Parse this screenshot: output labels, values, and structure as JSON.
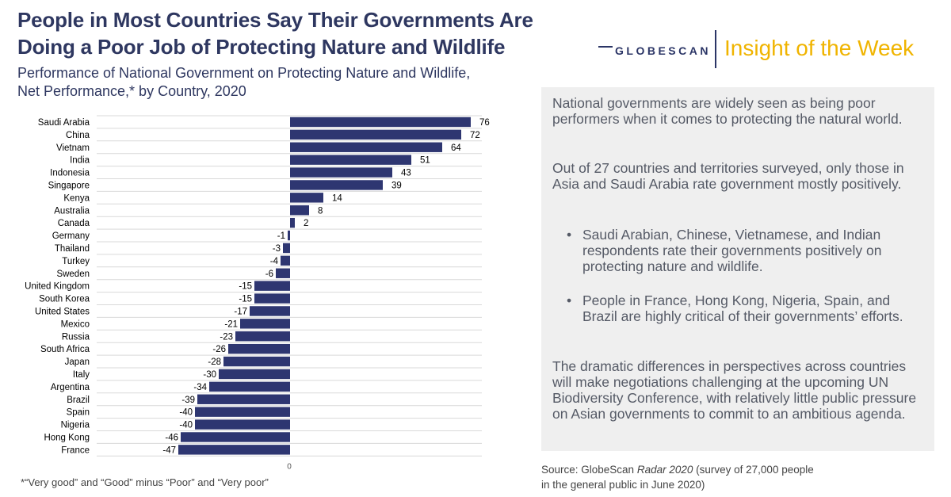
{
  "header": {
    "title_line1": "People in Most Countries Say Their Governments Are",
    "title_line2": "Doing a Poor Job of Protecting Nature and Wildlife",
    "subtitle_line1": "Performance of National Government on Protecting Nature and Wildlife,",
    "subtitle_line2": "Net Performance,* by Country, 2020"
  },
  "brand": {
    "logo_text": "GLOBESCAN",
    "tagline": "Insight of the Week",
    "colors": {
      "navy": "#2b3566",
      "gold": "#f0b400",
      "bar": "#2e3671"
    }
  },
  "panel": {
    "p1": "National governments are widely seen as being poor performers when it comes to protecting the natural world.",
    "p2": "Out of 27 countries and territories surveyed, only those in Asia and Saudi Arabia rate government mostly positively.",
    "bullet1": "Saudi Arabian, Chinese, Vietnamese, and Indian respondents rate their governments positively on protecting nature and wildlife.",
    "bullet2": "People in France, Hong Kong, Nigeria, Spain, and Brazil are highly critical of their governments’ efforts.",
    "p3": "The dramatic differences in perspectives across countries will make negotiations challenging at the upcoming UN Biodiversity Conference, with relatively little public pressure on Asian governments to commit to an ambitious agenda.",
    "bullet_symbol": "•"
  },
  "source": {
    "prefix": "Source:  GlobeScan ",
    "italic": "Radar 2020",
    "suffix": " (survey of 27,000 people",
    "line2": "in the general public in June 2020)"
  },
  "footnote": "*“Very good” and “Good” minus “Poor” and “Very poor”",
  "chart_data": {
    "type": "bar",
    "orientation": "horizontal",
    "categories": [
      "Saudi Arabia",
      "China",
      "Vietnam",
      "India",
      "Indonesia",
      "Singapore",
      "Kenya",
      "Australia",
      "Canada",
      "Germany",
      "Thailand",
      "Turkey",
      "Sweden",
      "United Kingdom",
      "South Korea",
      "United States",
      "Mexico",
      "Russia",
      "South Africa",
      "Japan",
      "Italy",
      "Argentina",
      "Brazil",
      "Spain",
      "Nigeria",
      "Hong Kong",
      "France"
    ],
    "values": [
      76,
      72,
      64,
      51,
      43,
      39,
      14,
      8,
      2,
      -1,
      -3,
      -4,
      -6,
      -15,
      -15,
      -17,
      -21,
      -23,
      -26,
      -28,
      -30,
      -34,
      -39,
      -40,
      -40,
      -46,
      -47
    ],
    "x_tick_label": "0",
    "xlim": [
      -80,
      80
    ],
    "grid": true,
    "bar_color": "#2e3671"
  }
}
